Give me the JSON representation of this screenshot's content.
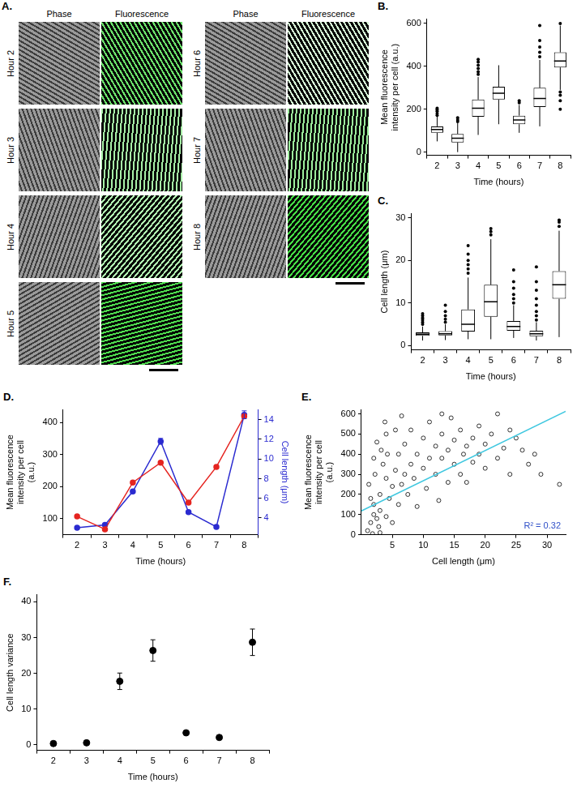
{
  "image_panel": {
    "panel_label": "A.",
    "columns": [
      "Phase",
      "Fluorescence"
    ],
    "rows": [
      "Hour 2",
      "Hour 3",
      "Hour 4",
      "Hour 5",
      "Hour 6",
      "Hour 7",
      "Hour 8"
    ]
  },
  "chart_data": [
    {
      "panel_label": "B.",
      "type": "boxplot",
      "categories": [
        "2",
        "3",
        "4",
        "5",
        "6",
        "7",
        "8"
      ],
      "x_label": "Time (hours)",
      "y_label": "Mean fluorescence intensity per cell (a.u.)",
      "ylim": [
        -15,
        620
      ],
      "yticks": [
        0,
        200,
        400,
        600
      ],
      "grid": false,
      "boxes": [
        {
          "min": 50,
          "q1": 90,
          "median": 105,
          "q3": 120,
          "max": 165,
          "outliers": [
            172,
            180,
            190,
            198,
            205
          ]
        },
        {
          "min": 0,
          "q1": 45,
          "median": 65,
          "q3": 85,
          "max": 135,
          "outliers": [
            142,
            150,
            160
          ]
        },
        {
          "min": 80,
          "q1": 165,
          "median": 205,
          "q3": 245,
          "max": 350,
          "outliers": [
            362,
            375,
            390,
            405,
            420,
            432
          ]
        },
        {
          "min": 130,
          "q1": 245,
          "median": 275,
          "q3": 305,
          "max": 405,
          "outliers": []
        },
        {
          "min": 90,
          "q1": 130,
          "median": 150,
          "q3": 170,
          "max": 220,
          "outliers": [
            230,
            240
          ]
        },
        {
          "min": 120,
          "q1": 210,
          "median": 250,
          "q3": 300,
          "max": 430,
          "outliers": [
            445,
            465,
            490,
            520,
            590
          ]
        },
        {
          "min": 290,
          "q1": 395,
          "median": 425,
          "q3": 465,
          "max": 590,
          "outliers": [
            200,
            240,
            265,
            280,
            600
          ]
        }
      ]
    },
    {
      "panel_label": "C.",
      "type": "boxplot",
      "categories": [
        "2",
        "3",
        "4",
        "5",
        "6",
        "7",
        "8"
      ],
      "x_label": "Time (hours)",
      "y_label": "Cell length (μm)",
      "ylim": [
        -1,
        31
      ],
      "yticks": [
        0,
        10,
        20,
        30
      ],
      "grid": false,
      "boxes": [
        {
          "min": 1.2,
          "q1": 2.3,
          "median": 2.7,
          "q3": 3.1,
          "max": 4.5,
          "outliers": [
            5,
            5.5,
            6,
            6.5,
            7,
            7.5
          ]
        },
        {
          "min": 1.3,
          "q1": 2.4,
          "median": 2.8,
          "q3": 3.4,
          "max": 5,
          "outliers": [
            5.5,
            6.2,
            7,
            8,
            9.5
          ]
        },
        {
          "min": 1.5,
          "q1": 3.3,
          "median": 5,
          "q3": 8.5,
          "max": 16,
          "outliers": [
            17,
            18,
            19,
            20,
            21.5,
            23.5
          ]
        },
        {
          "min": 1.5,
          "q1": 6.8,
          "median": 10.3,
          "q3": 14.3,
          "max": 25,
          "outliers": [
            26,
            26.8,
            27.5
          ]
        },
        {
          "min": 1.8,
          "q1": 3.5,
          "median": 4.5,
          "q3": 5.8,
          "max": 9.5,
          "outliers": [
            10,
            11,
            12,
            13.5,
            15,
            17.8
          ]
        },
        {
          "min": 1.2,
          "q1": 2.2,
          "median": 2.8,
          "q3": 3.5,
          "max": 5.5,
          "outliers": [
            6,
            7,
            8,
            9.5,
            11,
            13,
            15,
            18.5
          ]
        },
        {
          "min": 2,
          "q1": 11,
          "median": 14.3,
          "q3": 17.5,
          "max": 27,
          "outliers": [
            28,
            29,
            29.5
          ]
        }
      ]
    },
    {
      "panel_label": "D.",
      "type": "line",
      "categories": [
        "2",
        "3",
        "4",
        "5",
        "6",
        "7",
        "8"
      ],
      "x_label": "Time (hours)",
      "y_label": "Mean fluorescence intensity per cell (a.u.)",
      "y2_label": "Cell length (μm)",
      "ylim": [
        50,
        440
      ],
      "yticks": [
        100,
        200,
        300,
        400
      ],
      "y2lim": [
        2.3,
        15
      ],
      "y2ticks": [
        4,
        6,
        8,
        10,
        12,
        14
      ],
      "grid": false,
      "marker": "circle",
      "series": [
        {
          "color": "#e52420",
          "values": [
            107,
            67,
            213,
            275,
            150,
            262,
            420
          ]
        },
        {
          "color": "#2b2bd0",
          "axis": "y2",
          "values": [
            3.0,
            3.3,
            6.7,
            11.8,
            4.6,
            3.1,
            14.5
          ],
          "errors": [
            0.05,
            0.06,
            0.15,
            0.3,
            0.1,
            0.05,
            0.4
          ]
        }
      ]
    },
    {
      "panel_label": "E.",
      "type": "scatter",
      "x_label": "Cell length (μm)",
      "y_label": "Mean fluorescence intensity per cell (a.u.)",
      "xlim": [
        0,
        33
      ],
      "xticks": [
        5,
        10,
        15,
        20,
        25,
        30
      ],
      "ylim": [
        0,
        620
      ],
      "yticks": [
        0,
        100,
        200,
        300,
        400,
        500,
        600
      ],
      "grid": false,
      "series": [
        {
          "type": "scatter",
          "marker": "open_circle",
          "color": "#000000",
          "x": [
            1,
            1.5,
            2,
            2,
            2.5,
            3,
            3,
            1.2,
            2.2,
            3.5,
            4,
            4.5,
            2.8,
            1.8,
            3.2,
            2.5,
            4,
            3.8,
            4.2,
            5,
            5.5,
            6,
            6,
            5,
            6.5,
            7,
            7,
            7.5,
            8,
            8,
            8.5,
            9,
            9,
            10,
            10,
            10.5,
            11,
            11,
            12,
            12,
            12.5,
            13,
            13,
            14,
            14,
            14.5,
            15,
            15,
            16,
            16,
            16.5,
            17,
            17,
            18,
            18,
            19,
            19,
            20,
            20,
            21,
            22,
            23,
            24,
            25,
            26,
            27,
            29,
            32,
            2,
            1.5,
            3,
            4,
            5.5,
            6.5,
            13,
            22,
            28,
            24
          ],
          "y": [
            20,
            60,
            100,
            150,
            80,
            120,
            200,
            250,
            300,
            350,
            280,
            180,
            40,
            5,
            420,
            460,
            500,
            560,
            400,
            240,
            320,
            150,
            400,
            60,
            250,
            300,
            450,
            200,
            350,
            520,
            280,
            400,
            140,
            330,
            480,
            230,
            380,
            560,
            300,
            440,
            170,
            380,
            500,
            260,
            420,
            580,
            350,
            470,
            300,
            520,
            400,
            440,
            260,
            480,
            360,
            400,
            540,
            330,
            450,
            500,
            380,
            430,
            300,
            480,
            420,
            350,
            300,
            250,
            380,
            180,
            10,
            90,
            520,
            590,
            600,
            600,
            400,
            520
          ]
        },
        {
          "type": "line",
          "color": "#40c8e0",
          "x": [
            0,
            33
          ],
          "y": [
            118,
            613
          ]
        }
      ],
      "annotation": {
        "text": "R² = 0.32",
        "color": "#3050c8"
      }
    },
    {
      "panel_label": "F.",
      "type": "scatter",
      "categories": [
        "2",
        "3",
        "4",
        "5",
        "6",
        "7",
        "8"
      ],
      "x_label": "Time (hours)",
      "y_label": "Cell length variance",
      "ylim": [
        -1.5,
        42
      ],
      "yticks": [
        0,
        10,
        20,
        30,
        40
      ],
      "grid": false,
      "marker": "circle",
      "color": "#000000",
      "values": [
        0.4,
        0.6,
        17.8,
        26.4,
        3.4,
        2.1,
        28.7
      ],
      "errors": [
        0.05,
        0.07,
        2.3,
        3.0,
        0.3,
        0.2,
        3.7
      ]
    }
  ]
}
